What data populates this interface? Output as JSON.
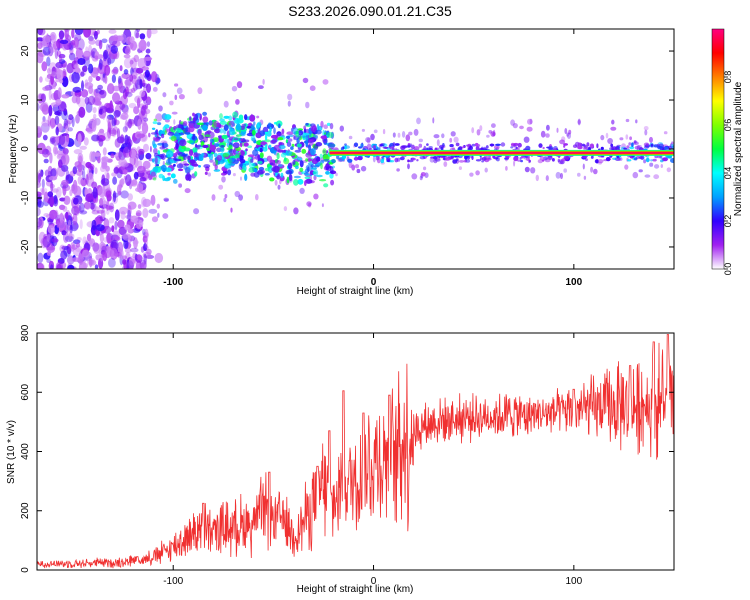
{
  "title": "S233.2026.090.01.21.C35",
  "chart_data": [
    {
      "type": "heatmap",
      "xlabel": "Height of straight line (km)",
      "ylabel": "Frequency (Hz)",
      "xlim": [
        -168,
        150
      ],
      "ylim": [
        -24.5,
        24.5
      ],
      "xticks": [
        -100,
        0,
        100
      ],
      "yticks": [
        -20,
        -10,
        0,
        10,
        20
      ],
      "line_frequency_hz": -0.8,
      "line_start_km": -22,
      "line_end_km": 150,
      "colorbar": {
        "label": "Normalized spectral amplitude",
        "ticks": [
          "0.0",
          "0.2",
          "0.4",
          "0.6",
          "0.8"
        ],
        "range": [
          0,
          1
        ],
        "colors": [
          "#ffffff",
          "#a020f0",
          "#3000ff",
          "#00a0ff",
          "#00ffff",
          "#00ff40",
          "#80ff00",
          "#ffff00",
          "#ff8000",
          "#ff0000",
          "#ff0080"
        ]
      }
    },
    {
      "type": "line",
      "xlabel": "Height of straight line (km)",
      "ylabel": "SNR (10 * v/v)",
      "xlim": [
        -168,
        150
      ],
      "ylim": [
        0,
        800
      ],
      "xticks": [
        -100,
        0,
        100
      ],
      "yticks": [
        0,
        200,
        400,
        600,
        800
      ],
      "series_color": "#f03030",
      "series": [
        {
          "name": "SNR",
          "x": [
            -168,
            -150,
            -130,
            -115,
            -105,
            -95,
            -88,
            -80,
            -70,
            -60,
            -55,
            -50,
            -45,
            -40,
            -35,
            -30,
            -25,
            -20,
            -15,
            -10,
            -5,
            0,
            5,
            10,
            15,
            20,
            25,
            30,
            40,
            50,
            60,
            70,
            80,
            90,
            100,
            110,
            120,
            130,
            140,
            150
          ],
          "y": [
            20,
            22,
            25,
            35,
            60,
            100,
            140,
            130,
            150,
            160,
            200,
            170,
            180,
            120,
            160,
            240,
            280,
            210,
            300,
            300,
            330,
            360,
            380,
            390,
            440,
            470,
            490,
            500,
            510,
            515,
            520,
            525,
            525,
            530,
            540,
            545,
            550,
            555,
            560,
            565
          ]
        }
      ],
      "spikes": [
        {
          "x": -118,
          "y": 45
        },
        {
          "x": -85,
          "y": 225
        },
        {
          "x": -52,
          "y": 330
        },
        {
          "x": -28,
          "y": 350
        },
        {
          "x": -22,
          "y": 470
        },
        {
          "x": -15,
          "y": 605
        },
        {
          "x": -5,
          "y": 530
        },
        {
          "x": 8,
          "y": 590
        },
        {
          "x": 100,
          "y": 610
        },
        {
          "x": 128,
          "y": 690
        },
        {
          "x": 140,
          "y": 770
        },
        {
          "x": 147,
          "y": 795
        }
      ]
    }
  ]
}
